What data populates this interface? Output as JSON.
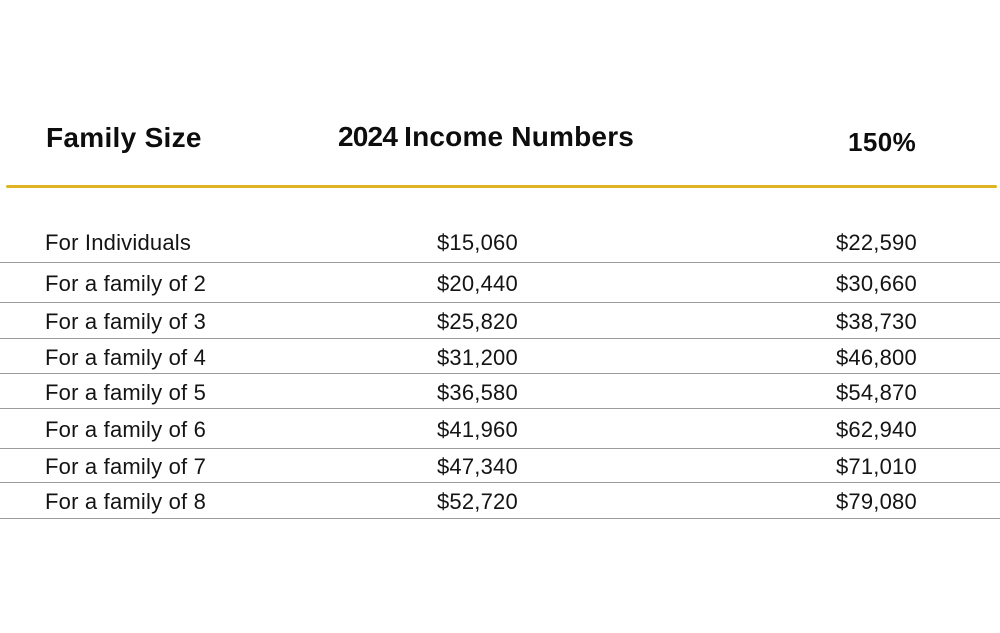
{
  "chart_data": {
    "type": "table",
    "title": "2024 Income Numbers",
    "columns": [
      "Family Size",
      "2024 Income Numbers",
      "150%"
    ],
    "rows": [
      [
        "For Individuals",
        "$15,060",
        "$22,590"
      ],
      [
        "For a family of 2",
        "$20,440",
        "$30,660"
      ],
      [
        "For a family of 3",
        "$25,820",
        "$38,730"
      ],
      [
        "For a family of 4",
        "$31,200",
        "$46,800"
      ],
      [
        "For a family of 5",
        "$36,580",
        "$54,870"
      ],
      [
        "For a family of 6",
        "$41,960",
        "$62,940"
      ],
      [
        "For a family of 7",
        "$47,340",
        "$71,010"
      ],
      [
        "For a family of 8",
        "$52,720",
        "$79,080"
      ]
    ],
    "layout": {
      "grid": "horizontal separators only",
      "accent_rule_under_header": true
    }
  },
  "table": {
    "header": {
      "family_size": "Family Size",
      "income_year": "2024",
      "income_label": "Income Numbers",
      "pct150": "150%"
    },
    "rows": [
      {
        "label": "For Individuals",
        "income": "$15,060",
        "pct150": "$22,590"
      },
      {
        "label": "For a family of 2",
        "income": "$20,440",
        "pct150": "$30,660"
      },
      {
        "label": "For a family of 3",
        "income": "$25,820",
        "pct150": "$38,730"
      },
      {
        "label": "For a family of 4",
        "income": "$31,200",
        "pct150": "$46,800"
      },
      {
        "label": "For a family of 5",
        "income": "$36,580",
        "pct150": "$54,870"
      },
      {
        "label": "For a family of 6",
        "income": "$41,960",
        "pct150": "$62,940"
      },
      {
        "label": "For a family of 7",
        "income": "$47,340",
        "pct150": "$71,010"
      },
      {
        "label": "For a family of 8",
        "income": "$52,720",
        "pct150": "$79,080"
      }
    ]
  },
  "colors": {
    "accent_rule": "#DFB321",
    "separator": "#9c9c9c",
    "text": "#141414",
    "background": "#ffffff"
  }
}
